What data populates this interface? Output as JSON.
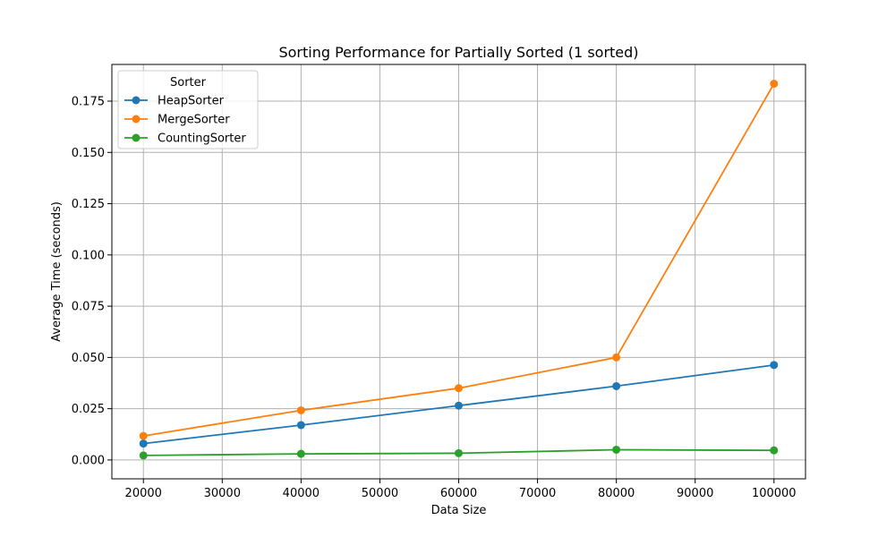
{
  "chart_data": {
    "type": "line",
    "title": "Sorting Performance for Partially Sorted (1 sorted)",
    "xlabel": "Data Size",
    "ylabel": "Average Time (seconds)",
    "x": [
      20000,
      40000,
      60000,
      80000,
      100000
    ],
    "xlim": [
      16000,
      104000
    ],
    "ylim": [
      -0.0092,
      0.1929
    ],
    "xticks": [
      20000,
      30000,
      40000,
      50000,
      60000,
      70000,
      80000,
      90000,
      100000
    ],
    "yticks": [
      0.0,
      0.025,
      0.05,
      0.075,
      0.1,
      0.125,
      0.15,
      0.175
    ],
    "ytick_labels": [
      "0.000",
      "0.025",
      "0.050",
      "0.075",
      "0.100",
      "0.125",
      "0.150",
      "0.175"
    ],
    "xtick_labels": [
      "20000",
      "30000",
      "40000",
      "50000",
      "60000",
      "70000",
      "80000",
      "90000",
      "100000"
    ],
    "grid": true,
    "legend": {
      "title": "Sorter",
      "position": "top-left"
    },
    "series": [
      {
        "name": "HeapSorter",
        "color": "#1f77b4",
        "values": [
          0.008,
          0.017,
          0.0265,
          0.036,
          0.0463
        ]
      },
      {
        "name": "MergeSorter",
        "color": "#ff7f0e",
        "values": [
          0.0117,
          0.0242,
          0.035,
          0.05,
          0.1835
        ]
      },
      {
        "name": "CountingSorter",
        "color": "#2ca02c",
        "values": [
          0.0022,
          0.003,
          0.0033,
          0.005,
          0.0047
        ]
      }
    ]
  }
}
